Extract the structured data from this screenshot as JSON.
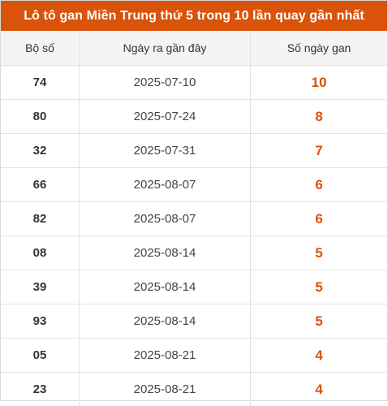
{
  "title": "Lô tô gan Miền Trung thứ 5 trong 10 lần quay gần nhất",
  "colors": {
    "header_bg": "#d9530a",
    "accent": "#d9530a",
    "header_row_bg": "#f4f4f4"
  },
  "columns": [
    "Bộ số",
    "Ngày ra gần đây",
    "Số ngày gan"
  ],
  "rows": [
    {
      "number": "74",
      "date": "2025-07-10",
      "days": "10"
    },
    {
      "number": "80",
      "date": "2025-07-24",
      "days": "8"
    },
    {
      "number": "32",
      "date": "2025-07-31",
      "days": "7"
    },
    {
      "number": "66",
      "date": "2025-08-07",
      "days": "6"
    },
    {
      "number": "82",
      "date": "2025-08-07",
      "days": "6"
    },
    {
      "number": "08",
      "date": "2025-08-14",
      "days": "5"
    },
    {
      "number": "39",
      "date": "2025-08-14",
      "days": "5"
    },
    {
      "number": "93",
      "date": "2025-08-14",
      "days": "5"
    },
    {
      "number": "05",
      "date": "2025-08-21",
      "days": "4"
    },
    {
      "number": "23",
      "date": "2025-08-21",
      "days": "4"
    }
  ]
}
